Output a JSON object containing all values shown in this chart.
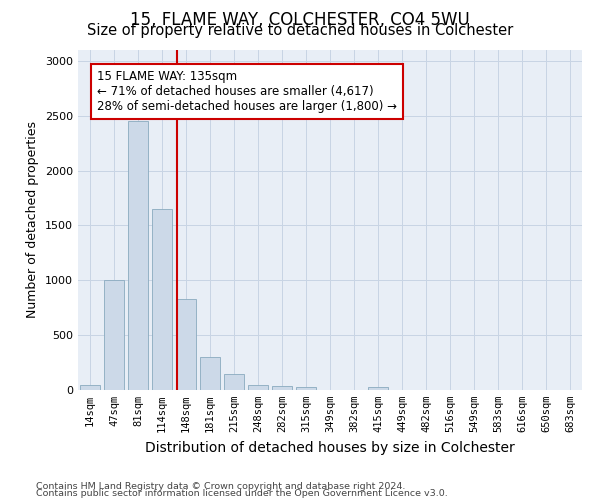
{
  "title1": "15, FLAME WAY, COLCHESTER, CO4 5WU",
  "title2": "Size of property relative to detached houses in Colchester",
  "xlabel": "Distribution of detached houses by size in Colchester",
  "ylabel": "Number of detached properties",
  "categories": [
    "14sqm",
    "47sqm",
    "81sqm",
    "114sqm",
    "148sqm",
    "181sqm",
    "215sqm",
    "248sqm",
    "282sqm",
    "315sqm",
    "349sqm",
    "382sqm",
    "415sqm",
    "449sqm",
    "482sqm",
    "516sqm",
    "549sqm",
    "583sqm",
    "616sqm",
    "650sqm",
    "683sqm"
  ],
  "values": [
    50,
    1000,
    2450,
    1650,
    830,
    300,
    145,
    50,
    35,
    25,
    0,
    0,
    30,
    0,
    0,
    0,
    0,
    0,
    0,
    0,
    0
  ],
  "bar_color": "#ccd9e8",
  "bar_edge_color": "#8aaabf",
  "vline_color": "#cc0000",
  "property_sqm": 135,
  "bin_starts": [
    14,
    47,
    81,
    114,
    148,
    181,
    215,
    248,
    282,
    315,
    349,
    382,
    415,
    449,
    482,
    516,
    549,
    583,
    616,
    650,
    683
  ],
  "bin_width": 33,
  "annotation_line1": "15 FLAME WAY: 135sqm",
  "annotation_line2": "← 71% of detached houses are smaller (4,617)",
  "annotation_line3": "28% of semi-detached houses are larger (1,800) →",
  "annotation_box_facecolor": "#ffffff",
  "annotation_box_edgecolor": "#cc0000",
  "ylim": [
    0,
    3100
  ],
  "yticks": [
    0,
    500,
    1000,
    1500,
    2000,
    2500,
    3000
  ],
  "grid_color": "#c8d4e4",
  "bg_color": "#e8eef6",
  "footer1": "Contains HM Land Registry data © Crown copyright and database right 2024.",
  "footer2": "Contains public sector information licensed under the Open Government Licence v3.0.",
  "title1_fontsize": 12,
  "title2_fontsize": 10.5,
  "ylabel_fontsize": 9,
  "xlabel_fontsize": 10,
  "tick_fontsize": 7.5,
  "annotation_fontsize": 8.5,
  "footer_fontsize": 6.8
}
